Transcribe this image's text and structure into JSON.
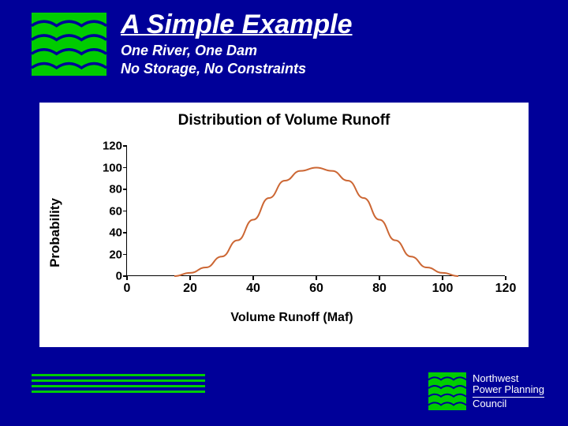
{
  "background_color": "#000099",
  "header": {
    "title": "A Simple Example",
    "subtitle_line1": "One River, One Dam",
    "subtitle_line2": "No Storage, No Constraints",
    "logo": {
      "bg_color": "#00cc00",
      "wave_color": "#000099",
      "wave_rows": 4,
      "wave_peaks_per_row": 3
    }
  },
  "chart": {
    "type": "line",
    "title": "Distribution of Volume Runoff",
    "title_fontsize": 19,
    "xlabel": "Volume Runoff (Maf)",
    "ylabel": "Probability",
    "label_fontsize": 17,
    "tick_fontsize": 15,
    "xlim": [
      0,
      120
    ],
    "ylim": [
      0,
      120
    ],
    "xticks": [
      0,
      20,
      40,
      60,
      80,
      100,
      120
    ],
    "yticks": [
      0,
      20,
      40,
      60,
      80,
      100,
      120
    ],
    "line_color": "#cc6633",
    "line_width": 2,
    "background_color": "#ffffff",
    "axis_color": "#000000",
    "series": {
      "x": [
        15,
        20,
        25,
        30,
        35,
        40,
        45,
        50,
        55,
        60,
        65,
        70,
        75,
        80,
        85,
        90,
        95,
        100,
        105
      ],
      "y": [
        0,
        3,
        8,
        18,
        33,
        52,
        72,
        88,
        97,
        100,
        97,
        88,
        72,
        52,
        33,
        18,
        8,
        3,
        0
      ]
    }
  },
  "footer": {
    "line_color": "#00cc00",
    "line_count": 4,
    "org": {
      "line1": "Northwest",
      "line2": "Power Planning",
      "line3": "Council"
    }
  }
}
